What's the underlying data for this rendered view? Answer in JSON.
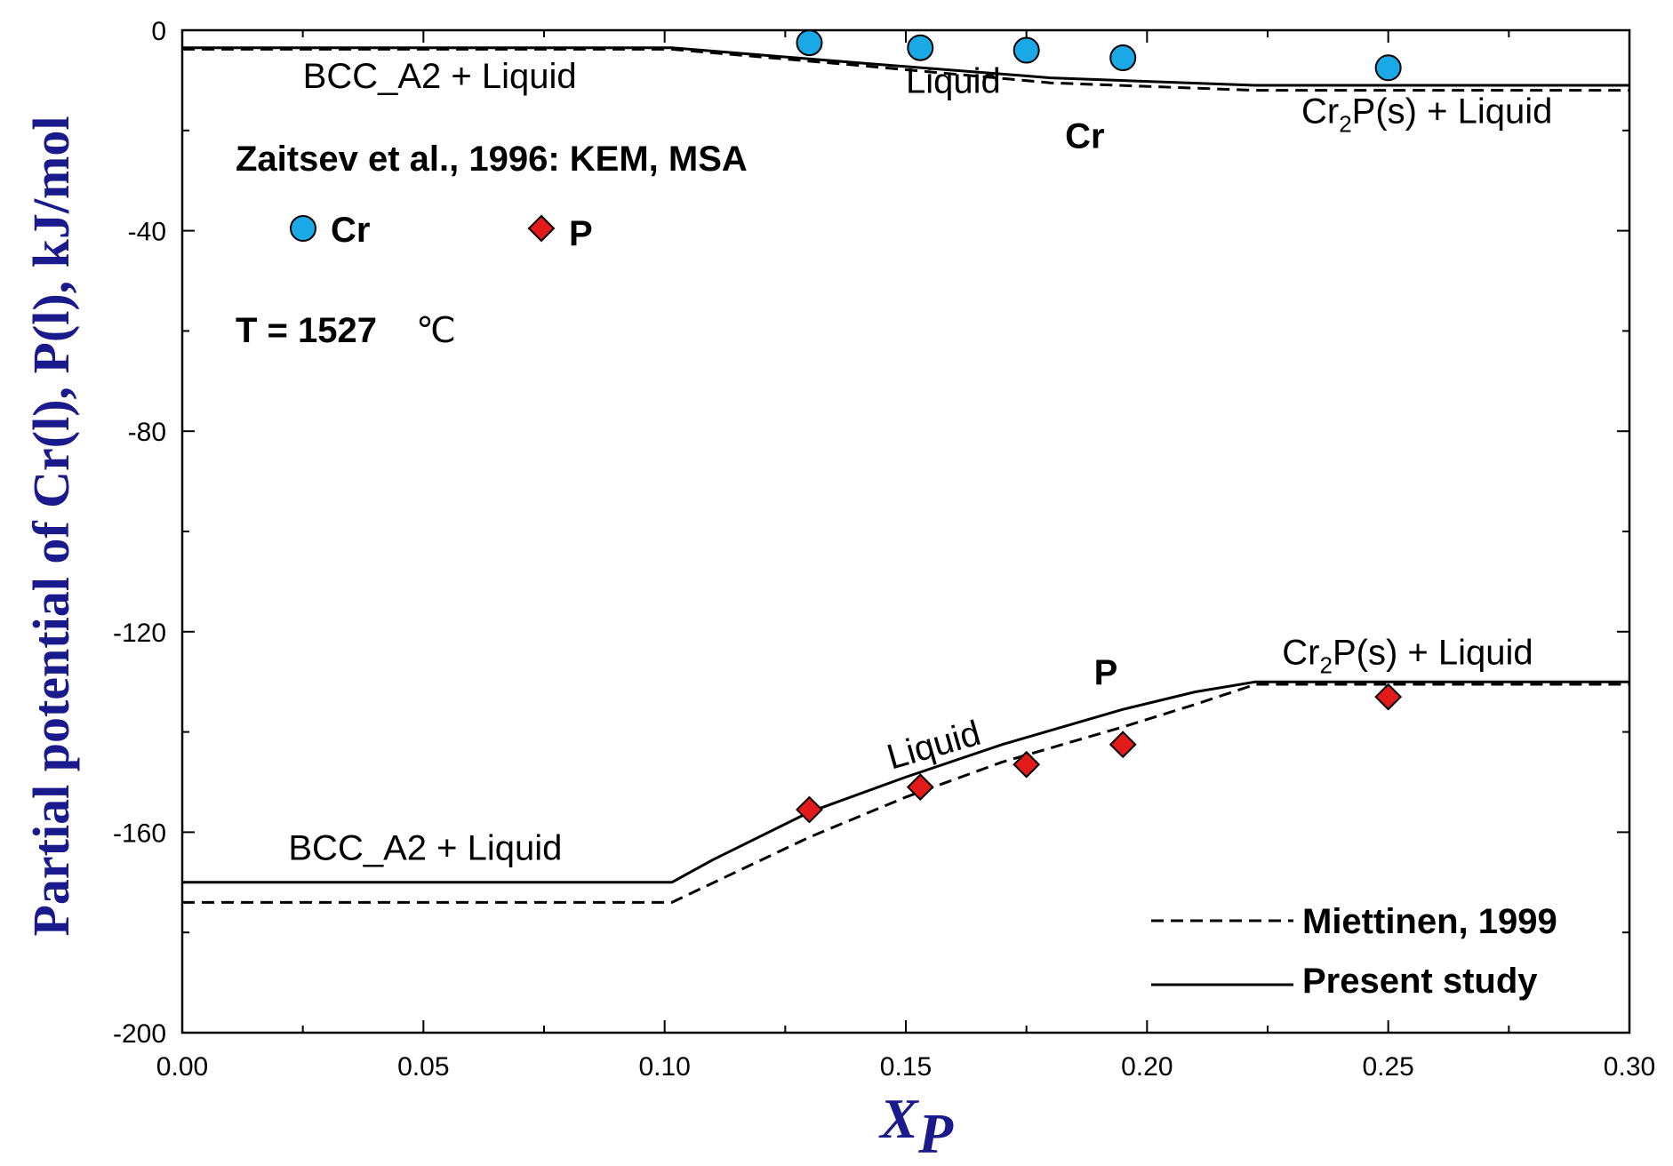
{
  "chart_data": {
    "type": "line",
    "xlabel": "X",
    "xlabel_sub": "P",
    "ylabel": "Partial potential of Cr(l), P(l), kJ/mol",
    "xlim": [
      0,
      0.3
    ],
    "ylim": [
      -200,
      0
    ],
    "x_ticks": [
      0,
      0.05,
      0.1,
      0.15,
      0.2,
      0.25,
      0.3
    ],
    "x_tick_labels": [
      "0.00",
      "0.05",
      "0.10",
      "0.15",
      "0.20",
      "0.25",
      "0.30"
    ],
    "y_ticks": [
      0,
      -40,
      -80,
      -120,
      -160,
      -200
    ],
    "y_tick_labels": [
      "0",
      "-40",
      "-80",
      "-120",
      "-160",
      "-200"
    ],
    "temperature_label": "T = 1527",
    "temperature_unit": "℃",
    "reference": "Zaitsev et al., 1996: KEM, MSA",
    "series": [
      {
        "name": "Present study",
        "component": "Cr",
        "style": "solid",
        "x": [
          0,
          0.1015,
          0.14,
          0.18,
          0.2225,
          0.3
        ],
        "y": [
          -3.5,
          -3.5,
          -6.5,
          -9.5,
          -11,
          -11
        ]
      },
      {
        "name": "Miettinen, 1999",
        "component": "Cr",
        "style": "dashed",
        "x": [
          0,
          0.1015,
          0.14,
          0.18,
          0.2225,
          0.3
        ],
        "y": [
          -3.8,
          -3.8,
          -7,
          -10.5,
          -12,
          -12
        ]
      },
      {
        "name": "Present study",
        "component": "P",
        "style": "solid",
        "x": [
          0,
          0.1015,
          0.11,
          0.13,
          0.15,
          0.17,
          0.195,
          0.21,
          0.2225,
          0.3
        ],
        "y": [
          -170,
          -170,
          -165.5,
          -156,
          -149,
          -142.5,
          -135.5,
          -132,
          -130,
          -130
        ]
      },
      {
        "name": "Miettinen, 1999",
        "component": "P",
        "style": "dashed",
        "x": [
          0,
          0.1015,
          0.13,
          0.15,
          0.17,
          0.195,
          0.21,
          0.2225,
          0.3
        ],
        "y": [
          -174,
          -174,
          -161,
          -153,
          -146,
          -139,
          -134.5,
          -130.5,
          -130.5
        ]
      },
      {
        "name": "Cr",
        "marker": "circle",
        "color": "#1aa9e6",
        "x": [
          0.13,
          0.153,
          0.175,
          0.195,
          0.25
        ],
        "y": [
          -2.5,
          -3.5,
          -4,
          -5.5,
          -7.5
        ]
      },
      {
        "name": "P",
        "marker": "diamond",
        "color": "#e31a1a",
        "x": [
          0.13,
          0.153,
          0.175,
          0.195,
          0.25
        ],
        "y": [
          -155.5,
          -151,
          -146.5,
          -142.5,
          -133
        ]
      }
    ],
    "annotations": [
      {
        "text": "BCC_A2 + Liquid",
        "x": 0.025,
        "y": -11.5
      },
      {
        "text": "Liquid",
        "x": 0.15,
        "y": -12.5
      },
      {
        "text": "Cr",
        "x": 0.183,
        "y": -23.5,
        "bold": true
      },
      {
        "text": "Cr",
        "sub": "2",
        "rest": "P(s) + Liquid",
        "x": 0.232,
        "y": -18.5
      },
      {
        "text": "BCC_A2 + Liquid",
        "x": 0.022,
        "y": -165.5
      },
      {
        "text": "Liquid",
        "x": 0.147,
        "y": -147.5,
        "rotate": -16
      },
      {
        "text": "P",
        "x": 0.189,
        "y": -130.5,
        "bold": true
      },
      {
        "text": "Cr",
        "sub": "2",
        "rest": "P(s) + Liquid",
        "x": 0.228,
        "y": -126.5
      }
    ]
  }
}
